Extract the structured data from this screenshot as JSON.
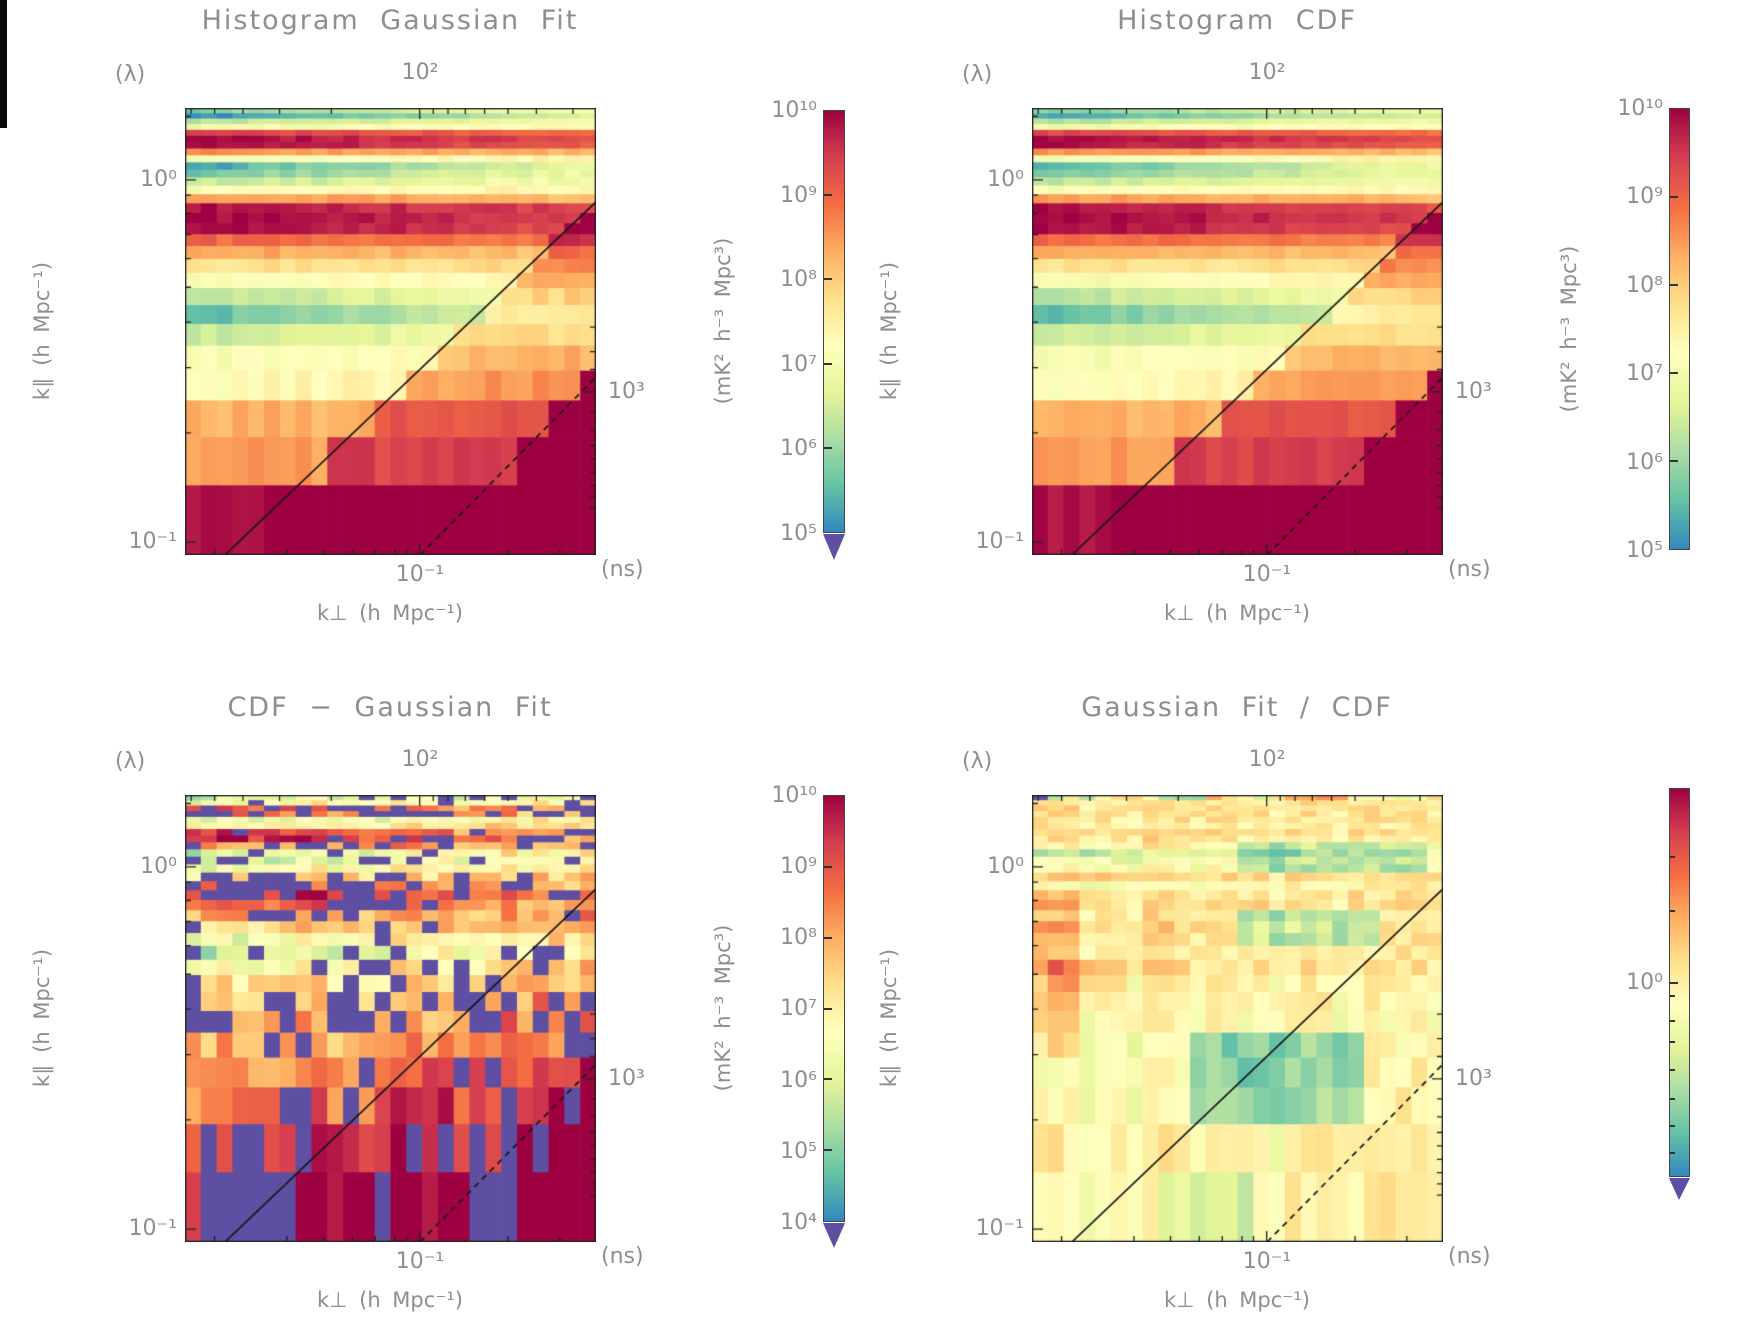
{
  "figure": {
    "text_color": "#8e8e8e",
    "axis_color": "#222222",
    "colormap": [
      "#3288bd",
      "#66c2a5",
      "#abdda4",
      "#e6f598",
      "#ffffbf",
      "#fee08b",
      "#fdae61",
      "#f46d43",
      "#d53e4f",
      "#9e0142"
    ],
    "under_color": "#5e4fa2",
    "panels": [
      {
        "title": "Histogram Gaussian Fit",
        "top_left_label": "(λ)",
        "top_tick": "10²",
        "y_label": "k∥ (h Mpc⁻¹)",
        "y_tick_upper": "10⁰",
        "y_tick_lower": "10⁻¹",
        "x_tick": "10⁻¹",
        "x_label": "k⊥ (h Mpc⁻¹)",
        "right_tick": "10³",
        "right_unit": "(ns)",
        "colorbar": {
          "label": "(mK² h⁻³ Mpc³)",
          "tick_labels": [
            "10¹⁰",
            "10⁹",
            "10⁸",
            "10⁷",
            "10⁶",
            "10⁵"
          ],
          "tick_fracs_major": [
            0.2,
            0.4,
            0.6,
            0.8
          ],
          "tick_fracs_minor": [],
          "arrow": true
        }
      },
      {
        "title": "Histogram CDF",
        "top_left_label": "(λ)",
        "top_tick": "10²",
        "y_label": "k∥ (h Mpc⁻¹)",
        "y_tick_upper": "10⁰",
        "y_tick_lower": "10⁻¹",
        "x_tick": "10⁻¹",
        "x_label": "k⊥ (h Mpc⁻¹)",
        "right_tick": "10³",
        "right_unit": "(ns)",
        "colorbar": {
          "label": "(mK² h⁻³ Mpc³)",
          "tick_labels": [
            "10¹⁰",
            "10⁹",
            "10⁸",
            "10⁷",
            "10⁶",
            "10⁵"
          ],
          "tick_fracs_major": [
            0.2,
            0.4,
            0.6,
            0.8
          ],
          "tick_fracs_minor": [],
          "arrow": false
        }
      },
      {
        "title": "CDF − Gaussian Fit",
        "top_left_label": "(λ)",
        "top_tick": "10²",
        "y_label": "k∥ (h Mpc⁻¹)",
        "y_tick_upper": "10⁰",
        "y_tick_lower": "10⁻¹",
        "x_tick": "10⁻¹",
        "x_label": "k⊥ (h Mpc⁻¹)",
        "right_tick": "10³",
        "right_unit": "(ns)",
        "colorbar": {
          "label": "(mK² h⁻³ Mpc³)",
          "tick_labels": [
            "10¹⁰",
            "10⁹",
            "10⁸",
            "10⁷",
            "10⁶",
            "10⁵",
            "10⁴"
          ],
          "tick_fracs_major": [
            0.1667,
            0.3333,
            0.5,
            0.6667,
            0.8333
          ],
          "tick_fracs_minor": [],
          "arrow": true
        }
      },
      {
        "title": "Gaussian Fit / CDF",
        "top_left_label": "(λ)",
        "top_tick": "10²",
        "y_label": "k∥ (h Mpc⁻¹)",
        "y_tick_upper": "10⁰",
        "y_tick_lower": "10⁻¹",
        "x_tick": "10⁻¹",
        "x_label": "k⊥ (h Mpc⁻¹)",
        "right_tick": "10³",
        "right_unit": "(ns)",
        "colorbar": {
          "label": "",
          "tick_labels": [
            "10⁰"
          ],
          "tick_fracs_major": [
            0.5
          ],
          "tick_fracs_minor": [
            0.175,
            0.315,
            0.535,
            0.6,
            0.655,
            0.725,
            0.8,
            0.87,
            0.94
          ],
          "arrow": true
        }
      }
    ]
  },
  "chart_data": [
    {
      "type": "heatmap",
      "title": "Histogram Gaussian Fit",
      "x_axis": {
        "label": "k⊥ (h Mpc⁻¹)",
        "scale": "log",
        "range": [
          0.0158,
          0.398
        ],
        "tick": "10⁻¹"
      },
      "y_axis": {
        "label": "k∥ (h Mpc⁻¹)",
        "scale": "log",
        "range": [
          0.092,
          1.58
        ],
        "ticks": [
          "10⁰",
          "10⁻¹"
        ]
      },
      "top_axis": {
        "label": "(λ)",
        "tick": "10²"
      },
      "right_axis": {
        "label": "(ns)",
        "tick": "10³"
      },
      "color_axis": {
        "label": "(mK² h⁻³ Mpc³)",
        "scale": "log",
        "log10_range": [
          5,
          10
        ],
        "underflow_arrow": true
      },
      "value_range": [
        5,
        10
      ],
      "noise": 0.15,
      "col_noise": 0.08,
      "rows": [
        [
          5.8,
          7.0
        ],
        [
          5.0,
          6.6
        ],
        [
          6.2,
          7.0
        ],
        [
          6.9,
          7.3
        ],
        [
          9.4,
          8.9
        ],
        [
          10,
          9.2
        ],
        [
          10,
          9.0
        ],
        [
          8.6,
          8.2
        ],
        [
          7.0,
          7.5
        ],
        [
          5.2,
          6.8
        ],
        [
          5.6,
          6.9
        ],
        [
          6.3,
          7.0
        ],
        [
          7.1,
          7.4
        ],
        [
          8.5,
          8.2
        ],
        [
          9.9,
          9.3
        ],
        [
          10,
          9.4
        ],
        [
          10,
          9.2
        ],
        [
          9.0,
          8.7
        ],
        [
          8.4,
          8.1
        ],
        [
          7.7,
          7.8
        ],
        [
          7.0,
          7.5
        ],
        [
          6.2,
          7.1
        ],
        [
          5.5,
          6.8
        ],
        [
          6.4,
          7.0
        ],
        [
          7.0,
          7.4
        ],
        [
          7.2,
          7.7
        ],
        [
          8.3,
          8.3
        ],
        [
          8.5,
          8.5
        ],
        [
          9.9,
          9.7
        ]
      ],
      "blobs": [],
      "wedge": {
        "solid_boost": 0.9,
        "dashed_boost": 1.9
      },
      "lines": [
        {
          "style": "solid",
          "x0": 0.097,
          "y0": 1.0,
          "x1": 1.0,
          "y1": 0.21
        },
        {
          "style": "dashed",
          "x0": 0.572,
          "y0": 1.0,
          "x1": 1.0,
          "y1": 0.602
        }
      ]
    },
    {
      "type": "heatmap",
      "title": "Histogram CDF",
      "x_axis": {
        "label": "k⊥ (h Mpc⁻¹)",
        "scale": "log",
        "range": [
          0.0158,
          0.398
        ],
        "tick": "10⁻¹"
      },
      "y_axis": {
        "label": "k∥ (h Mpc⁻¹)",
        "scale": "log",
        "range": [
          0.092,
          1.58
        ],
        "ticks": [
          "10⁰",
          "10⁻¹"
        ]
      },
      "top_axis": {
        "label": "(λ)",
        "tick": "10²"
      },
      "right_axis": {
        "label": "(ns)",
        "tick": "10³"
      },
      "color_axis": {
        "label": "(mK² h⁻³ Mpc³)",
        "scale": "log",
        "log10_range": [
          5,
          10
        ],
        "underflow_arrow": false
      },
      "value_range": [
        5,
        10
      ],
      "noise": 0.12,
      "col_noise": 0.08,
      "rows": [
        [
          5.8,
          7.0
        ],
        [
          5.2,
          6.7
        ],
        [
          6.2,
          7.0
        ],
        [
          6.9,
          7.3
        ],
        [
          9.4,
          8.9
        ],
        [
          10,
          9.2
        ],
        [
          10,
          9.0
        ],
        [
          8.6,
          8.2
        ],
        [
          7.0,
          7.5
        ],
        [
          5.3,
          6.9
        ],
        [
          5.6,
          6.9
        ],
        [
          6.3,
          7.0
        ],
        [
          7.1,
          7.4
        ],
        [
          8.5,
          8.2
        ],
        [
          9.9,
          9.3
        ],
        [
          10,
          9.4
        ],
        [
          10,
          9.2
        ],
        [
          9.0,
          8.7
        ],
        [
          8.4,
          8.1
        ],
        [
          7.7,
          7.8
        ],
        [
          7.0,
          7.5
        ],
        [
          6.2,
          7.1
        ],
        [
          5.5,
          6.8
        ],
        [
          6.4,
          7.0
        ],
        [
          7.0,
          7.4
        ],
        [
          7.2,
          7.7
        ],
        [
          8.3,
          8.3
        ],
        [
          8.5,
          8.5
        ],
        [
          9.9,
          9.7
        ]
      ],
      "blobs": [],
      "wedge": {
        "solid_boost": 0.9,
        "dashed_boost": 1.9
      },
      "lines": [
        {
          "style": "solid",
          "x0": 0.097,
          "y0": 1.0,
          "x1": 1.0,
          "y1": 0.21
        },
        {
          "style": "dashed",
          "x0": 0.572,
          "y0": 1.0,
          "x1": 1.0,
          "y1": 0.602
        }
      ]
    },
    {
      "type": "heatmap",
      "title": "CDF − Gaussian Fit",
      "x_axis": {
        "label": "k⊥ (h Mpc⁻¹)",
        "scale": "log",
        "range": [
          0.0158,
          0.398
        ],
        "tick": "10⁻¹"
      },
      "y_axis": {
        "label": "k∥ (h Mpc⁻¹)",
        "scale": "log",
        "range": [
          0.092,
          1.58
        ],
        "ticks": [
          "10⁰",
          "10⁻¹"
        ]
      },
      "top_axis": {
        "label": "(λ)",
        "tick": "10²"
      },
      "right_axis": {
        "label": "(ns)",
        "tick": "10³"
      },
      "color_axis": {
        "label": "(mK² h⁻³ Mpc³)",
        "scale": "log",
        "log10_range": [
          4,
          10
        ],
        "underflow_arrow": true
      },
      "value_range": [
        4,
        10
      ],
      "noise": 0.55,
      "col_noise": 0.35,
      "rows": [
        [
          5.8,
          6.8,
          0.2
        ],
        [
          6.4,
          7.2,
          0.15
        ],
        [
          9.3,
          7.9,
          0.3
        ],
        [
          8.8,
          7.8,
          0.35
        ],
        [
          6.1,
          7.1,
          0
        ],
        [
          7.0,
          7.4,
          0.05
        ],
        [
          9.6,
          7.9,
          0.3
        ],
        [
          9.9,
          8.0,
          0.3
        ],
        [
          8.4,
          7.7,
          0.2
        ],
        [
          5.9,
          7.1,
          0.1
        ],
        [
          5.5,
          7.0,
          0.2
        ],
        [
          6.5,
          7.2,
          0.05
        ],
        [
          7.2,
          7.5,
          0.1
        ],
        [
          8.8,
          7.9,
          0.3
        ],
        [
          9.8,
          8.0,
          0.25
        ],
        [
          9.2,
          8.0,
          0.2
        ],
        [
          8.2,
          7.8,
          0.15
        ],
        [
          7.4,
          7.6,
          0.05
        ],
        [
          6.2,
          7.2,
          0.15
        ],
        [
          5.8,
          7.0,
          0.25
        ],
        [
          6.6,
          7.3,
          0.1
        ],
        [
          7.2,
          7.6,
          0.2
        ],
        [
          7.5,
          7.8,
          0.3
        ],
        [
          7.9,
          8.0,
          0.25
        ],
        [
          8.2,
          8.2,
          0.1
        ],
        [
          8.5,
          8.4,
          0.05
        ],
        [
          8.8,
          8.6,
          0.15
        ],
        [
          9.2,
          8.9,
          0.3
        ],
        [
          9.9,
          9.5,
          0.15
        ]
      ],
      "blobs": [
        {
          "x": [
            0.0,
            0.28
          ],
          "y": [
            0.92,
            1.0
          ],
          "mask": 0.7
        },
        {
          "x": [
            0.52,
            0.84
          ],
          "y": [
            0.75,
            0.86
          ],
          "mask": 0.4
        },
        {
          "x": [
            0.05,
            0.27
          ],
          "y": [
            0.17,
            0.24
          ],
          "mask": 0.75
        },
        {
          "x": [
            0.0,
            0.1
          ],
          "y": [
            0.48,
            0.55
          ],
          "mask": 0.8
        },
        {
          "x": [
            0.35,
            0.58
          ],
          "y": [
            0.17,
            0.26
          ],
          "mask": 0.5
        },
        {
          "x": [
            0.28,
            0.75
          ],
          "y": [
            0.36,
            0.41
          ],
          "mask": 0.5
        }
      ],
      "wedge": {
        "solid_boost": 0.5,
        "dashed_boost": 1.6
      },
      "lines": [
        {
          "style": "solid",
          "x0": 0.097,
          "y0": 1.0,
          "x1": 1.0,
          "y1": 0.21
        },
        {
          "style": "dashed",
          "x0": 0.572,
          "y0": 1.0,
          "x1": 1.0,
          "y1": 0.602
        }
      ]
    },
    {
      "type": "heatmap",
      "title": "Gaussian Fit / CDF",
      "x_axis": {
        "label": "k⊥ (h Mpc⁻¹)",
        "scale": "log",
        "range": [
          0.0158,
          0.398
        ],
        "tick": "10⁻¹"
      },
      "y_axis": {
        "label": "k∥ (h Mpc⁻¹)",
        "scale": "log",
        "range": [
          0.092,
          1.58
        ],
        "ticks": [
          "10⁰",
          "10⁻¹"
        ]
      },
      "top_axis": {
        "label": "(λ)",
        "tick": "10²"
      },
      "right_axis": {
        "label": "(ns)",
        "tick": "10³"
      },
      "color_axis": {
        "label": "",
        "scale": "log-ratio",
        "center_tick": "10⁰",
        "log10_range": [
          -2.5,
          2.5
        ],
        "underflow_arrow": true
      },
      "value_range": [
        -2.5,
        2.5
      ],
      "noise": 0.32,
      "col_noise": 0.25,
      "rows": [
        [
          -0.6,
          0.2,
          0.06,
          1.3
        ],
        [
          0.15,
          0.1
        ],
        [
          0.35,
          0.05
        ],
        [
          0.3,
          0.0
        ],
        [
          0.2,
          0.0
        ],
        [
          0.1,
          -0.1
        ],
        [
          0.45,
          0.05
        ],
        [
          0.2,
          -0.1
        ],
        [
          0.0,
          -0.45
        ],
        [
          -1.3,
          -0.5
        ],
        [
          -0.6,
          -0.3
        ],
        [
          -0.2,
          -0.6
        ],
        [
          0.5,
          0.0
        ],
        [
          -0.4,
          -0.2
        ],
        [
          0.25,
          0.0
        ],
        [
          0.3,
          0.05
        ],
        [
          0.1,
          0.0
        ],
        [
          0.45,
          0.1
        ],
        [
          0.25,
          0.0
        ],
        [
          0.05,
          -0.05
        ],
        [
          0.3,
          0.0
        ],
        [
          -0.1,
          -0.2
        ],
        [
          0.1,
          -0.3
        ],
        [
          -0.1,
          -0.4
        ],
        [
          -0.3,
          -0.3
        ],
        [
          -0.5,
          -0.25
        ],
        [
          -0.25,
          -0.2
        ],
        [
          -0.1,
          -0.15
        ],
        [
          -0.2,
          -0.1
        ]
      ],
      "blobs": [
        {
          "x": [
            0.5,
            0.95
          ],
          "y": [
            0.1,
            0.17
          ],
          "add": -0.9
        },
        {
          "x": [
            0.5,
            0.85
          ],
          "y": [
            0.25,
            0.35
          ],
          "add": -1.3
        },
        {
          "x": [
            0.38,
            0.8
          ],
          "y": [
            0.55,
            0.75
          ],
          "add": -1.4
        },
        {
          "x": [
            0.3,
            0.55
          ],
          "y": [
            0.9,
            1.0
          ],
          "add": -0.9
        },
        {
          "x": [
            0.0,
            0.1
          ],
          "y": [
            0.22,
            0.6
          ],
          "add": 0.4
        },
        {
          "x": [
            0.05,
            0.22
          ],
          "y": [
            0.38,
            0.46
          ],
          "add": 0.6
        }
      ],
      "wedge": {
        "solid_boost": 0,
        "dashed_boost": 0
      },
      "lines": [
        {
          "style": "solid",
          "x0": 0.097,
          "y0": 1.0,
          "x1": 1.0,
          "y1": 0.21
        },
        {
          "style": "dashed",
          "x0": 0.572,
          "y0": 1.0,
          "x1": 1.0,
          "y1": 0.602
        }
      ]
    }
  ]
}
